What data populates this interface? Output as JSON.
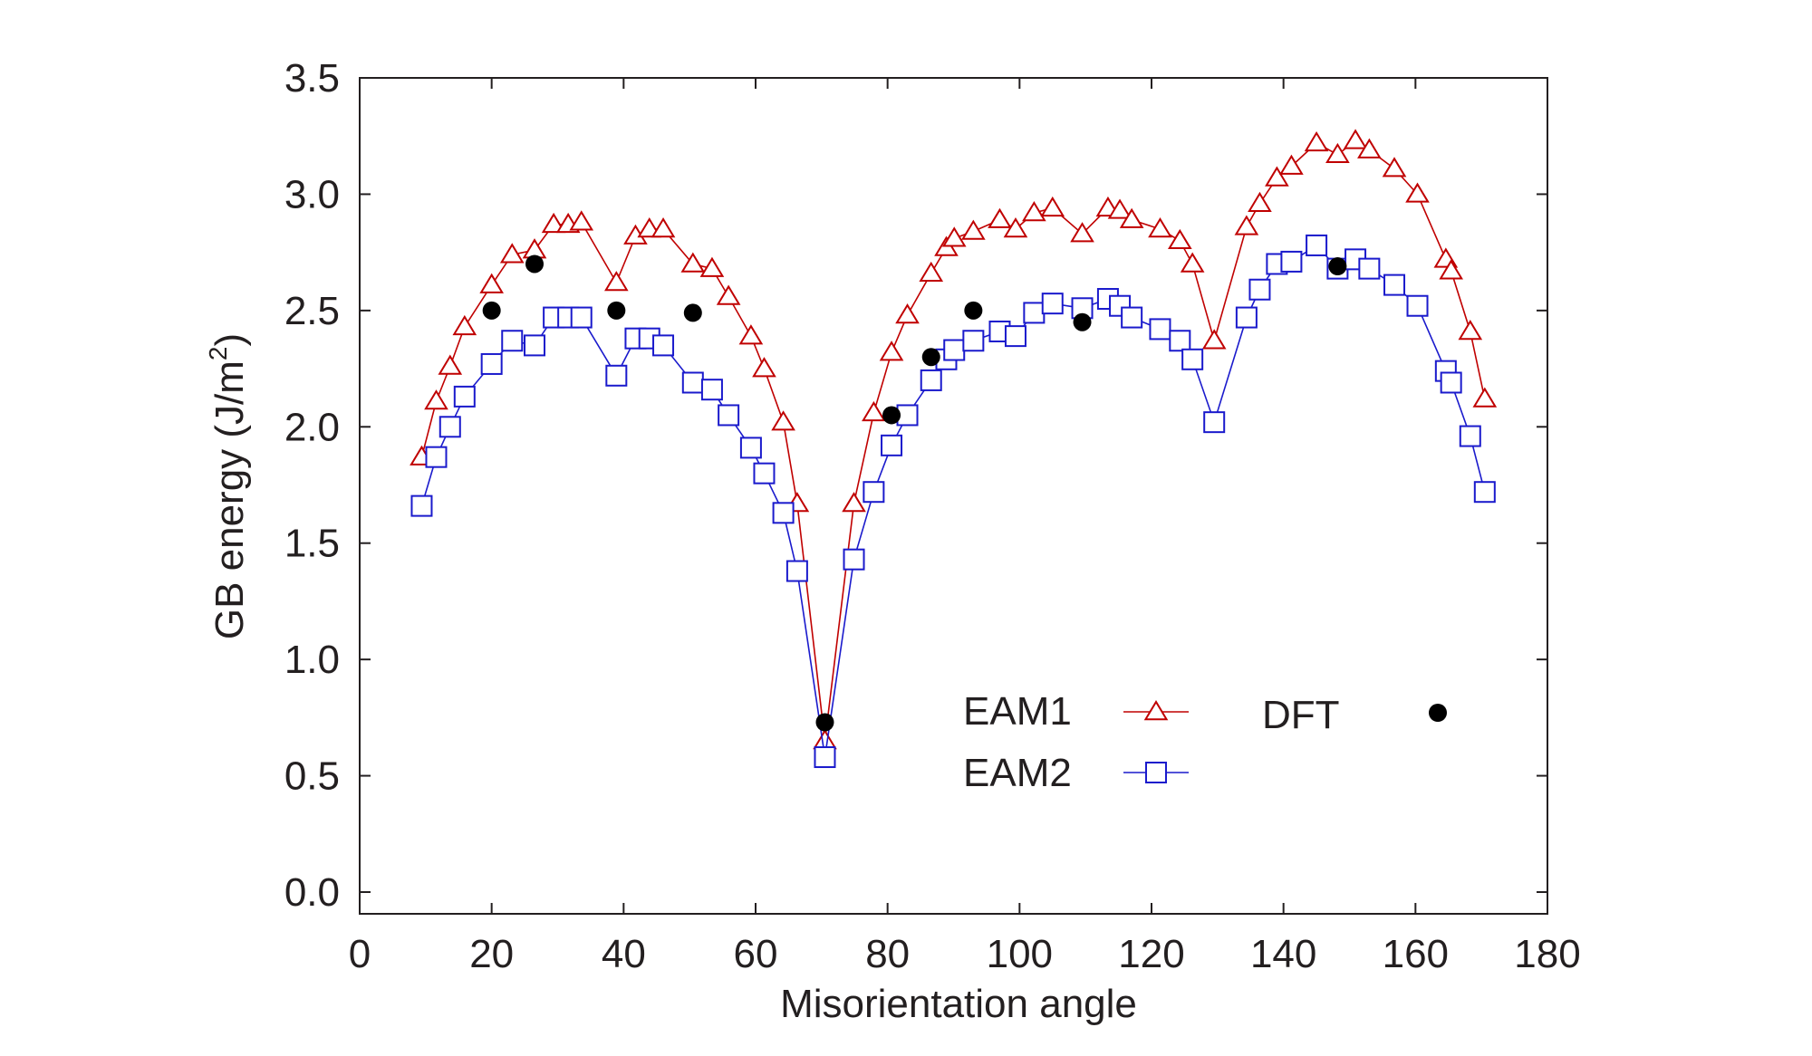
{
  "chart_data": {
    "type": "scatter",
    "title": "",
    "xlabel": "Misorientation angle",
    "ylabel": "GB energy (J/m",
    "ylabel_superscript": "2",
    "ylabel_close": ")",
    "xlim": [
      0,
      180
    ],
    "ylim": [
      0.0,
      3.5
    ],
    "xticks": [
      0,
      20,
      40,
      60,
      80,
      100,
      120,
      140,
      160,
      180
    ],
    "xtick_labels": [
      "0",
      "20",
      "40",
      "60",
      "80",
      "100",
      "120",
      "140",
      "160",
      "180"
    ],
    "yticks": [
      0.0,
      0.5,
      1.0,
      1.5,
      2.0,
      2.5,
      3.0,
      3.5
    ],
    "ytick_labels": [
      "0.0",
      "0.5",
      "1.0",
      "1.5",
      "2.0",
      "2.5",
      "3.0",
      "3.5"
    ],
    "grid": false,
    "legend": "inside lower-right, two columns",
    "series": [
      {
        "name": "EAM1",
        "color": "#c00000",
        "marker": "triangle-open",
        "line": true,
        "x": [
          9.4,
          11.6,
          13.7,
          15.9,
          20.0,
          23.1,
          26.5,
          29.4,
          31.6,
          33.6,
          38.9,
          41.8,
          43.9,
          46.0,
          50.5,
          53.4,
          55.9,
          59.3,
          61.3,
          64.2,
          66.3,
          70.5,
          74.9,
          77.9,
          80.6,
          83.0,
          86.6,
          88.9,
          90.1,
          93.0,
          97.0,
          99.4,
          102.2,
          105.0,
          109.5,
          113.4,
          115.2,
          117.0,
          121.3,
          124.3,
          126.2,
          129.5,
          134.4,
          136.4,
          139.0,
          141.2,
          145.0,
          148.2,
          150.9,
          153.0,
          156.8,
          160.3,
          164.6,
          165.4,
          168.3,
          170.5
        ],
        "y": [
          1.87,
          2.11,
          2.26,
          2.43,
          2.61,
          2.74,
          2.76,
          2.87,
          2.87,
          2.88,
          2.62,
          2.82,
          2.85,
          2.85,
          2.7,
          2.68,
          2.56,
          2.39,
          2.25,
          2.02,
          1.67,
          0.65,
          1.67,
          2.06,
          2.32,
          2.48,
          2.66,
          2.77,
          2.81,
          2.84,
          2.89,
          2.85,
          2.92,
          2.94,
          2.83,
          2.94,
          2.93,
          2.89,
          2.85,
          2.8,
          2.7,
          2.37,
          2.86,
          2.96,
          3.07,
          3.12,
          3.22,
          3.17,
          3.23,
          3.19,
          3.11,
          3.0,
          2.72,
          2.67,
          2.41,
          2.12
        ]
      },
      {
        "name": "EAM2",
        "color": "#1a1acc",
        "marker": "square-open",
        "line": true,
        "x": [
          9.4,
          11.6,
          13.7,
          15.9,
          20.0,
          23.1,
          26.5,
          29.4,
          31.6,
          33.6,
          38.9,
          41.8,
          43.9,
          46.0,
          50.5,
          53.4,
          55.9,
          59.3,
          61.3,
          64.2,
          66.3,
          70.5,
          74.9,
          77.9,
          80.6,
          83.0,
          86.6,
          88.9,
          90.1,
          93.0,
          97.0,
          99.4,
          102.2,
          105.0,
          109.5,
          113.4,
          115.2,
          117.0,
          121.3,
          124.3,
          126.2,
          129.5,
          134.4,
          136.4,
          139.0,
          141.2,
          145.0,
          148.2,
          150.9,
          153.0,
          156.8,
          160.3,
          164.6,
          165.4,
          168.3,
          170.5
        ],
        "y": [
          1.66,
          1.87,
          2.0,
          2.13,
          2.27,
          2.37,
          2.35,
          2.47,
          2.47,
          2.47,
          2.22,
          2.38,
          2.38,
          2.35,
          2.19,
          2.16,
          2.05,
          1.91,
          1.8,
          1.63,
          1.38,
          0.58,
          1.43,
          1.72,
          1.92,
          2.05,
          2.2,
          2.29,
          2.33,
          2.37,
          2.41,
          2.39,
          2.49,
          2.53,
          2.51,
          2.55,
          2.52,
          2.47,
          2.42,
          2.37,
          2.29,
          2.02,
          2.47,
          2.59,
          2.7,
          2.71,
          2.78,
          2.68,
          2.72,
          2.68,
          2.61,
          2.52,
          2.24,
          2.19,
          1.96,
          1.72
        ]
      },
      {
        "name": "DFT",
        "color": "#000000",
        "marker": "circle-filled",
        "line": false,
        "x": [
          20.0,
          26.5,
          38.9,
          50.5,
          70.5,
          80.6,
          86.6,
          93.0,
          109.5,
          148.2
        ],
        "y": [
          2.5,
          2.7,
          2.5,
          2.49,
          0.73,
          2.05,
          2.3,
          2.5,
          2.45,
          2.69
        ]
      }
    ]
  }
}
